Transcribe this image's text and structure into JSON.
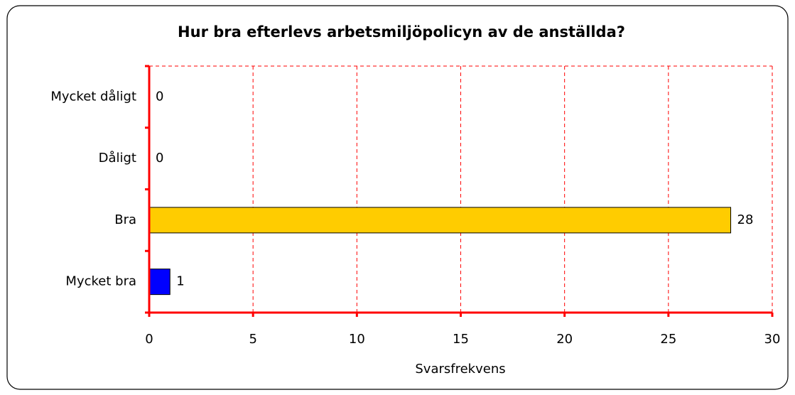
{
  "chart_data": {
    "type": "hbar",
    "title": "Hur bra efterlevs arbetsmiljöpolicyn av de anställda?",
    "categories": [
      "Mycket dåligt",
      "Dåligt",
      "Bra",
      "Mycket bra"
    ],
    "values": [
      0,
      0,
      28,
      1
    ],
    "colors": [
      "#ff0000",
      "#00cc00",
      "#ffcc00",
      "#0000ff"
    ],
    "xlabel": "Svarsfrekvens",
    "xlim": [
      0,
      30
    ],
    "xticks": [
      0,
      5,
      10,
      15,
      20,
      25,
      30
    ],
    "grid": true,
    "axis_color": "#ff0000"
  }
}
